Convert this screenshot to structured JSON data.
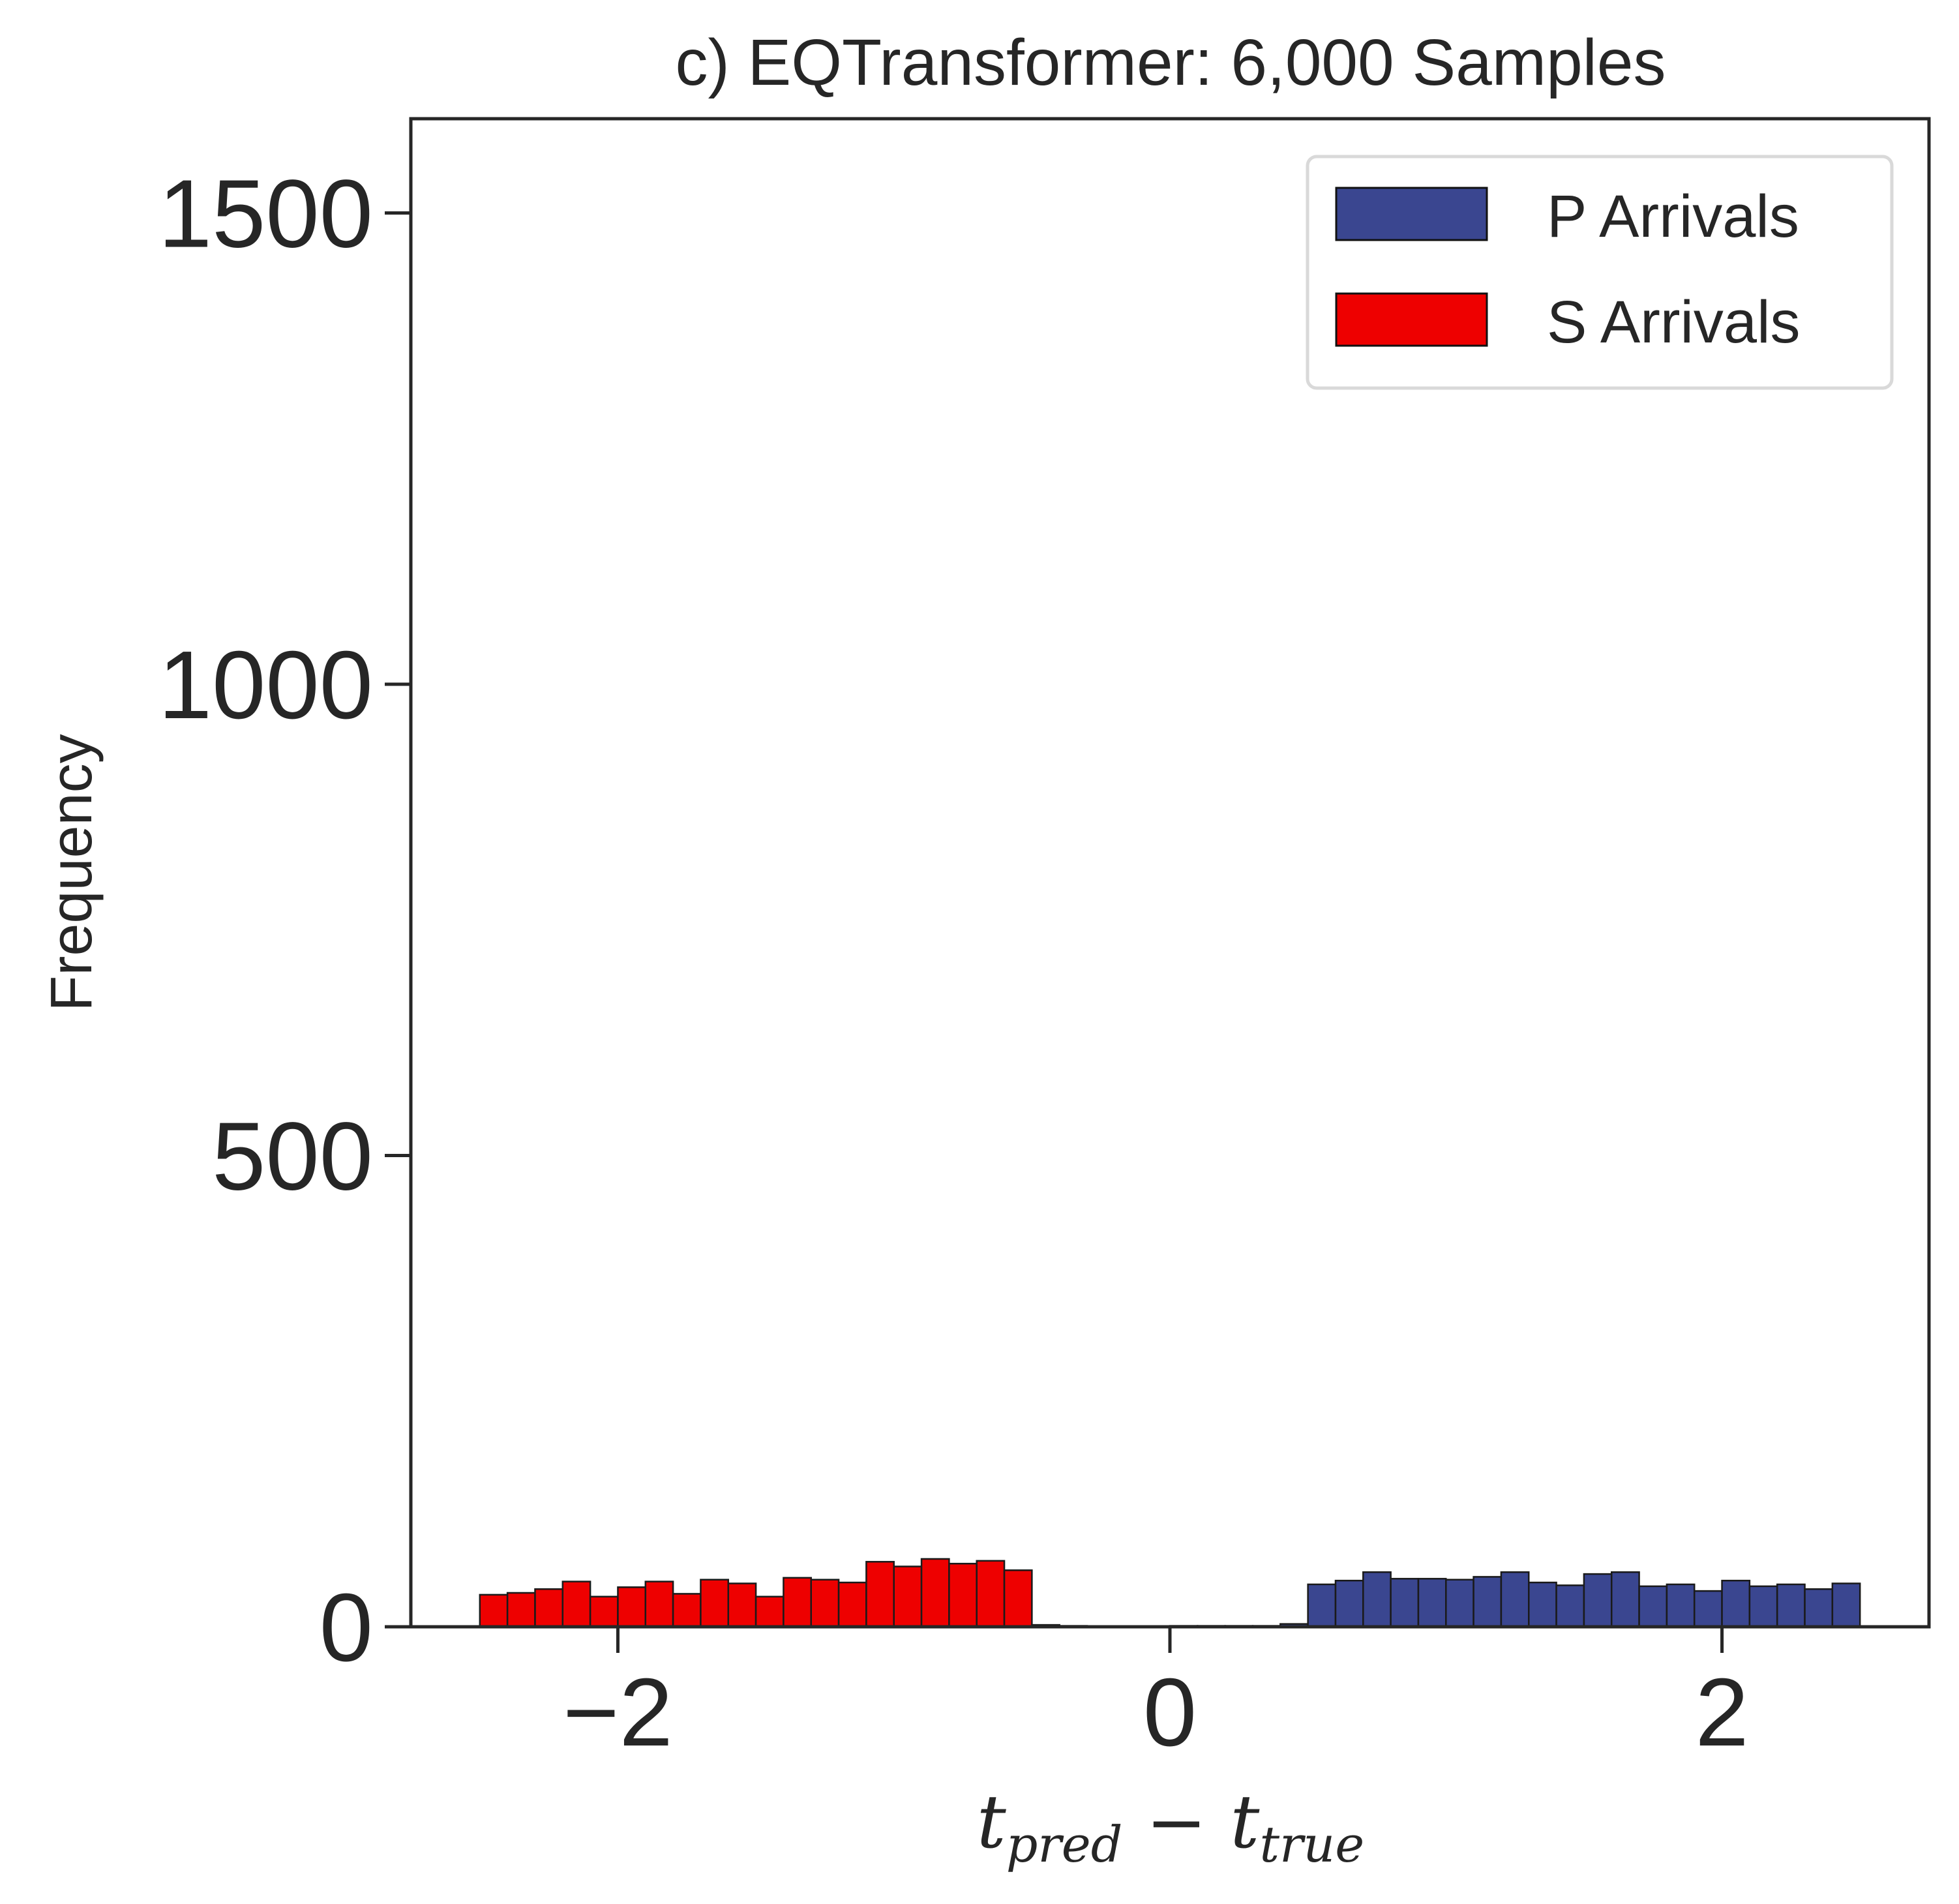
{
  "chart_data": {
    "type": "bar",
    "title": "c) EQTransformer: 6,000 Samples",
    "ylabel": "Frequency",
    "xlabel": {
      "t1": "t",
      "sub1": "pred",
      "minus": " − ",
      "t2": "t",
      "sub2": "true"
    },
    "xlim": [
      -2.75,
      2.75
    ],
    "ylim": [
      0,
      1600
    ],
    "xticks": [
      {
        "value": -2,
        "label": "−2"
      },
      {
        "value": 0,
        "label": "0"
      },
      {
        "value": 2,
        "label": "2"
      }
    ],
    "yticks": [
      {
        "value": 0,
        "label": "0"
      },
      {
        "value": 500,
        "label": "500"
      },
      {
        "value": 1000,
        "label": "1000"
      },
      {
        "value": 1500,
        "label": "1500"
      }
    ],
    "grid": false,
    "legend": {
      "position": "top-right"
    },
    "bin_start": -2.5,
    "bin_width": 0.1,
    "series": [
      {
        "name": "P Arrivals",
        "color": "#3a4690",
        "values": [
          0,
          0,
          0,
          0,
          0,
          0,
          0,
          0,
          0,
          0,
          0,
          0,
          0,
          0,
          0,
          0,
          0,
          0,
          0,
          0,
          0,
          0,
          0,
          0,
          0,
          0,
          0,
          1,
          1,
          3,
          45,
          49,
          58,
          51,
          51,
          50,
          53,
          58,
          47,
          44,
          56,
          58,
          43,
          45,
          38,
          49,
          43,
          45,
          40,
          46
        ]
      },
      {
        "name": "S Arrivals",
        "color": "#ee0000",
        "values": [
          34,
          36,
          40,
          48,
          32,
          42,
          48,
          35,
          50,
          46,
          32,
          52,
          50,
          47,
          69,
          64,
          72,
          67,
          70,
          60,
          2,
          1,
          0,
          0,
          0,
          1,
          1,
          0,
          0,
          0,
          0,
          0,
          0,
          0,
          0,
          0,
          0,
          0,
          0,
          0,
          0,
          0,
          0,
          0,
          0,
          0,
          0,
          0,
          0,
          0
        ]
      }
    ]
  }
}
